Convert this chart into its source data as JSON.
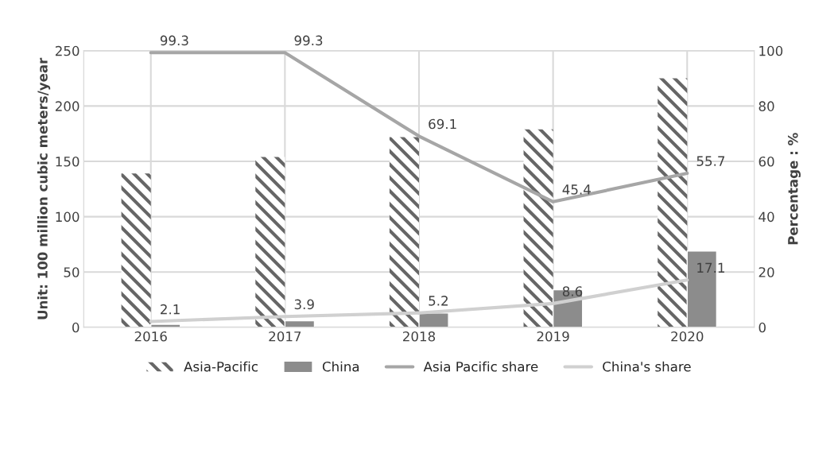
{
  "chart_data": {
    "type": "bar",
    "categories": [
      "2016",
      "2017",
      "2018",
      "2019",
      "2020"
    ],
    "ylabel": "Unit: 100 million cubic meters/year",
    "y2label": "Percentage : %",
    "ylim": [
      0,
      250
    ],
    "yticks": [
      0,
      50,
      100,
      150,
      200,
      250
    ],
    "y2lim": [
      0,
      100
    ],
    "y2ticks": [
      0,
      20,
      40,
      60,
      80,
      100
    ],
    "grid": true,
    "legend": "bottom",
    "series": [
      {
        "name": "Asia-Pacific",
        "color": "#666666",
        "values": [
          139,
          154,
          172,
          179,
          225
        ]
      },
      {
        "name": "China",
        "color": "#8c8c8c",
        "values": [
          2.7,
          6,
          13,
          34,
          69
        ]
      },
      {
        "name": "Asia Pacific share",
        "type": "line",
        "axis": "y2",
        "color": "#a6a6a6",
        "data_labels": true,
        "values": [
          99.3,
          99.3,
          69.1,
          45.4,
          55.7
        ]
      },
      {
        "name": "China's share",
        "type": "line",
        "axis": "y2",
        "color": "#d0d0d0",
        "data_labels": true,
        "values": [
          2.1,
          3.9,
          5.2,
          8.6,
          17.1
        ]
      }
    ]
  }
}
